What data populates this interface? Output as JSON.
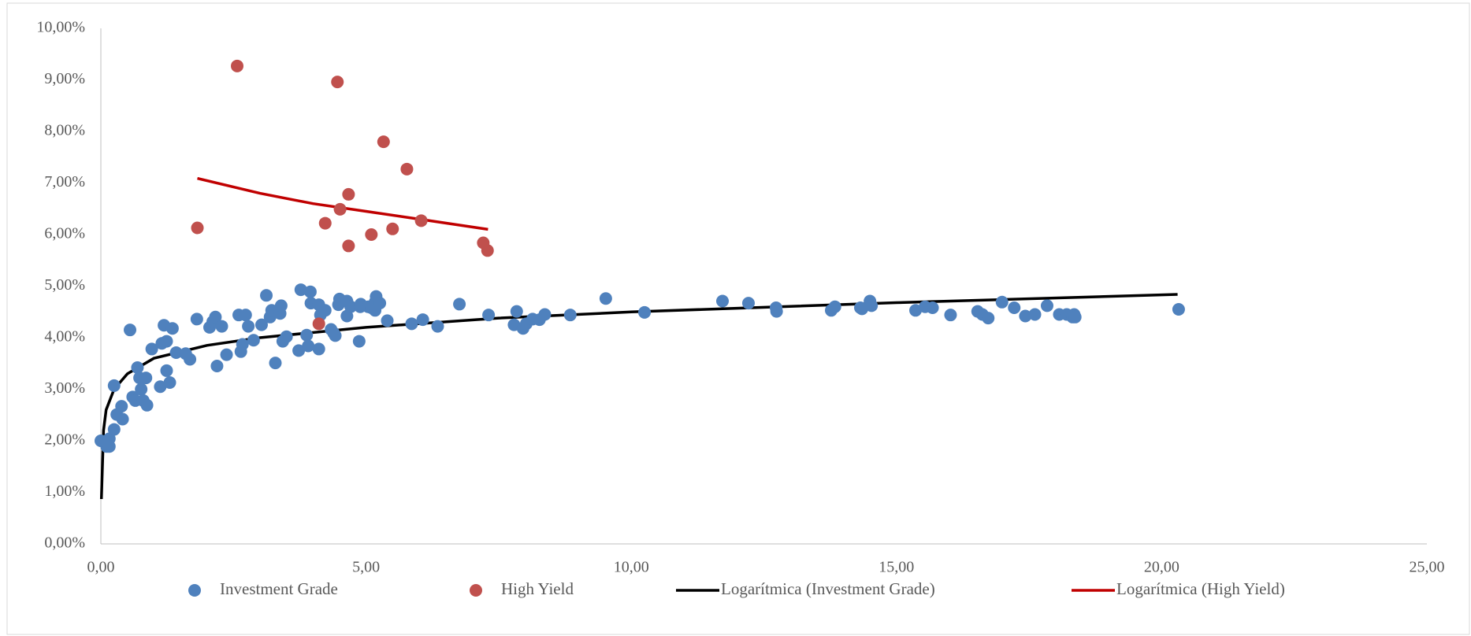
{
  "chart_data": {
    "type": "scatter",
    "xlim": [
      0,
      25
    ],
    "ylim": [
      0,
      10
    ],
    "xticks": [
      {
        "value": 0,
        "label": "0,00"
      },
      {
        "value": 5,
        "label": "5,00"
      },
      {
        "value": 10,
        "label": "10,00"
      },
      {
        "value": 15,
        "label": "15,00"
      },
      {
        "value": 20,
        "label": "20,00"
      },
      {
        "value": 25,
        "label": "25,00"
      }
    ],
    "yticks": [
      {
        "value": 0,
        "label": "0,00%"
      },
      {
        "value": 1,
        "label": "1,00%"
      },
      {
        "value": 2,
        "label": "2,00%"
      },
      {
        "value": 3,
        "label": "3,00%"
      },
      {
        "value": 4,
        "label": "4,00%"
      },
      {
        "value": 5,
        "label": "5,00%"
      },
      {
        "value": 6,
        "label": "6,00%"
      },
      {
        "value": 7,
        "label": "7,00%"
      },
      {
        "value": 8,
        "label": "8,00%"
      },
      {
        "value": 9,
        "label": "9,00%"
      },
      {
        "value": 10,
        "label": "10,00%"
      }
    ],
    "grid": false,
    "legend": "bottom",
    "series": [
      {
        "name": "Investment Grade",
        "color": "#4f81bd",
        "mode": "markers",
        "x": [
          0.0,
          0.11,
          0.16,
          0.16,
          0.25,
          0.25,
          0.3,
          0.39,
          0.41,
          0.55,
          0.6,
          0.65,
          0.69,
          0.73,
          0.76,
          0.8,
          0.85,
          0.87,
          0.96,
          1.12,
          1.15,
          1.19,
          1.24,
          1.24,
          1.3,
          1.35,
          1.42,
          1.6,
          1.68,
          1.81,
          2.05,
          2.11,
          2.16,
          2.19,
          2.28,
          2.37,
          2.6,
          2.64,
          2.67,
          2.73,
          2.78,
          2.88,
          3.03,
          3.12,
          3.19,
          3.22,
          3.29,
          3.38,
          3.4,
          3.43,
          3.5,
          3.73,
          3.77,
          3.88,
          3.91,
          3.95,
          3.96,
          4.11,
          4.11,
          4.14,
          4.23,
          4.34,
          4.39,
          4.42,
          4.48,
          4.5,
          4.64,
          4.64,
          4.71,
          4.87,
          4.89,
          4.9,
          5.04,
          5.1,
          5.17,
          5.17,
          5.19,
          5.26,
          5.4,
          5.86,
          6.07,
          6.35,
          6.76,
          7.31,
          7.79,
          7.84,
          7.96,
          8.02,
          8.14,
          8.27,
          8.37,
          8.85,
          9.52,
          10.25,
          11.72,
          12.21,
          12.73,
          12.74,
          13.77,
          13.84,
          14.32,
          14.35,
          14.5,
          14.53,
          15.36,
          15.54,
          15.68,
          16.02,
          16.53,
          16.62,
          16.73,
          16.99,
          17.22,
          17.43,
          17.61,
          17.84,
          18.07,
          18.21,
          18.32,
          18.35,
          18.37,
          20.32
        ],
        "values": [
          2.0,
          1.89,
          2.04,
          1.89,
          2.22,
          3.07,
          2.51,
          2.67,
          2.42,
          4.15,
          2.85,
          2.78,
          3.42,
          3.22,
          3.0,
          2.78,
          3.22,
          2.69,
          3.78,
          3.05,
          3.89,
          4.24,
          3.93,
          3.36,
          3.13,
          4.18,
          3.71,
          3.69,
          3.58,
          4.36,
          4.2,
          4.31,
          4.4,
          3.45,
          4.22,
          3.67,
          4.44,
          3.73,
          3.87,
          4.44,
          4.22,
          3.95,
          4.25,
          4.82,
          4.4,
          4.53,
          3.51,
          4.47,
          4.62,
          3.93,
          4.02,
          3.75,
          4.93,
          4.05,
          3.84,
          4.89,
          4.67,
          4.64,
          3.78,
          4.44,
          4.53,
          4.16,
          4.09,
          4.04,
          4.64,
          4.75,
          4.71,
          4.42,
          4.6,
          3.93,
          4.6,
          4.65,
          4.6,
          4.58,
          4.69,
          4.53,
          4.8,
          4.67,
          4.33,
          4.27,
          4.35,
          4.22,
          4.65,
          4.44,
          4.25,
          4.51,
          4.18,
          4.27,
          4.36,
          4.35,
          4.45,
          4.44,
          4.76,
          4.49,
          4.71,
          4.67,
          4.58,
          4.51,
          4.53,
          4.6,
          4.58,
          4.56,
          4.71,
          4.62,
          4.53,
          4.6,
          4.58,
          4.44,
          4.51,
          4.45,
          4.38,
          4.69,
          4.58,
          4.42,
          4.45,
          4.62,
          4.45,
          4.45,
          4.4,
          4.45,
          4.4,
          4.55
        ]
      },
      {
        "name": "High Yield",
        "color": "#c0504d",
        "mode": "markers",
        "x": [
          1.82,
          2.57,
          4.23,
          4.46,
          4.51,
          4.67,
          4.67,
          4.11,
          5.1,
          5.33,
          5.5,
          5.77,
          6.04,
          7.21,
          7.29
        ],
        "values": [
          6.13,
          9.27,
          6.22,
          8.96,
          6.49,
          6.78,
          5.78,
          4.27,
          6.0,
          7.8,
          6.11,
          7.27,
          6.27,
          5.84,
          5.69
        ]
      },
      {
        "name": "Logarítmica (Investment Grade)",
        "color": "#000000",
        "mode": "line",
        "x": [
          0.01,
          0.05,
          0.1,
          0.25,
          0.5,
          1,
          2,
          3,
          5,
          7.5,
          10,
          15,
          20.3
        ],
        "values": [
          0.87,
          2.2,
          2.6,
          3.0,
          3.3,
          3.6,
          3.85,
          4.0,
          4.2,
          4.38,
          4.5,
          4.68,
          4.84
        ]
      },
      {
        "name": "Logarítmica (High Yield)",
        "color": "#c00000",
        "mode": "line",
        "x": [
          1.82,
          3,
          4,
          5,
          6,
          7.3
        ],
        "values": [
          7.09,
          6.8,
          6.6,
          6.45,
          6.3,
          6.1
        ]
      }
    ]
  }
}
